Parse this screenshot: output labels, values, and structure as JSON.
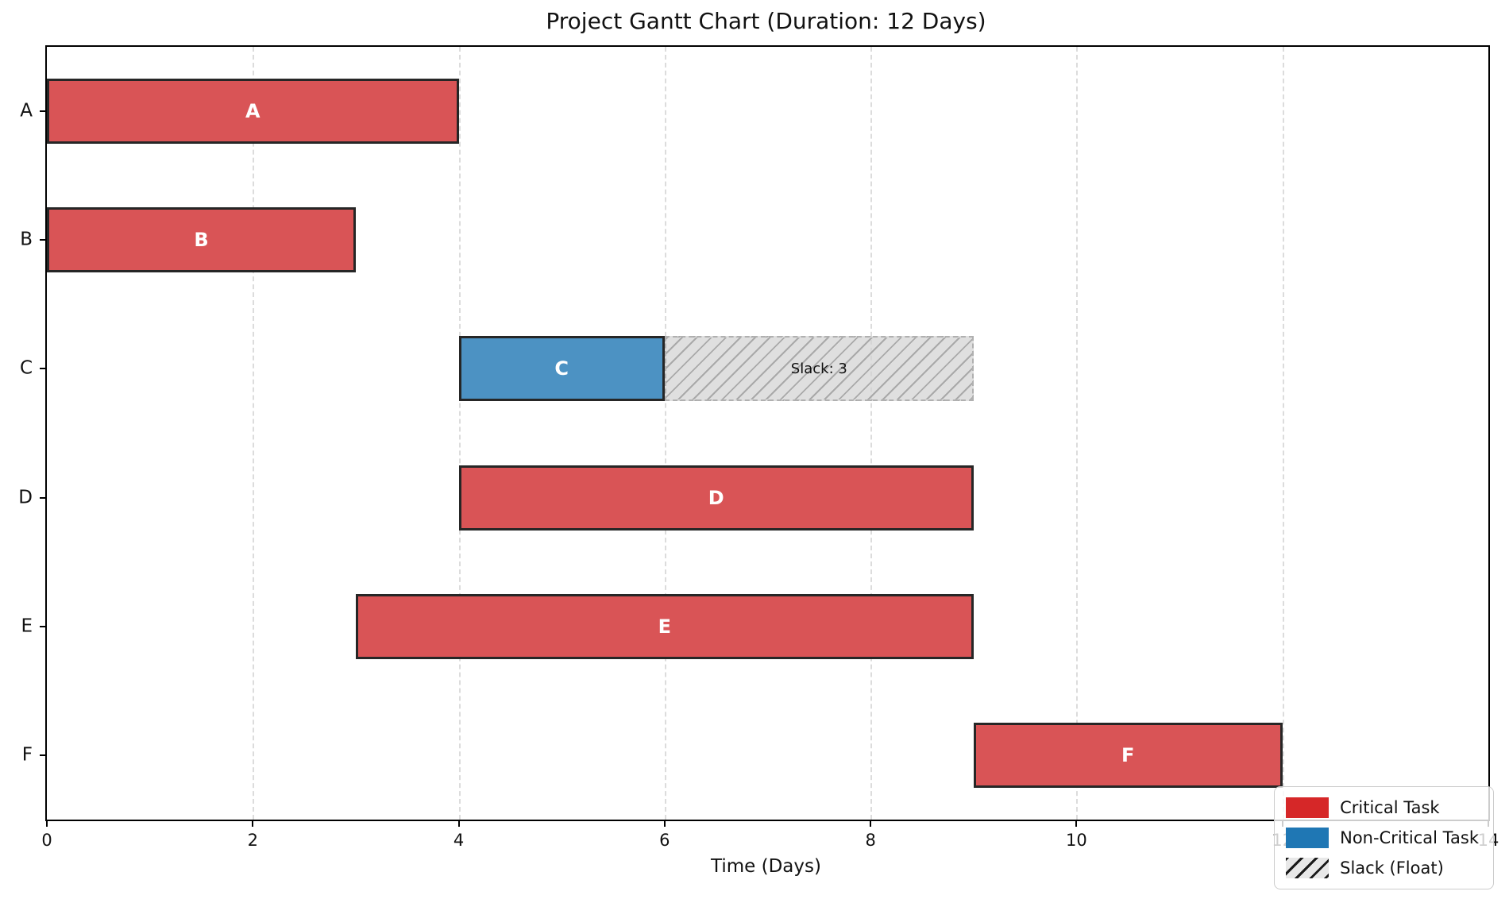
{
  "chart_data": {
    "type": "bar",
    "subtype": "gantt",
    "title": "Project Gantt Chart (Duration: 12 Days)",
    "xlabel": "Time (Days)",
    "project_duration_days": 12,
    "xlim": [
      0,
      14
    ],
    "xticks": [
      0,
      2,
      4,
      6,
      8,
      10,
      12,
      14
    ],
    "grid": {
      "axis": "x",
      "style": "dashed",
      "color": "#dcdcdc"
    },
    "yticklabels": [
      "A",
      "B",
      "C",
      "D",
      "E",
      "F"
    ],
    "tasks": [
      {
        "name": "A",
        "start": 0,
        "duration": 4,
        "end": 4,
        "type": "critical",
        "slack": 0
      },
      {
        "name": "B",
        "start": 0,
        "duration": 3,
        "end": 3,
        "type": "critical",
        "slack": 0
      },
      {
        "name": "C",
        "start": 4,
        "duration": 2,
        "end": 6,
        "type": "non-critical",
        "slack": 3,
        "slack_label": "Slack: 3"
      },
      {
        "name": "D",
        "start": 4,
        "duration": 5,
        "end": 9,
        "type": "critical",
        "slack": 0
      },
      {
        "name": "E",
        "start": 3,
        "duration": 6,
        "end": 9,
        "type": "critical",
        "slack": 0
      },
      {
        "name": "F",
        "start": 9,
        "duration": 3,
        "end": 12,
        "type": "critical",
        "slack": 0
      }
    ],
    "colors": {
      "critical_bar": "#d95456",
      "noncritical_bar": "#4c92c3",
      "bar_edge": "#262626",
      "slack_fill": "#d3d3d3",
      "slack_hatch": "#a0a0a0",
      "legend_critical": "#d62728",
      "legend_noncritical": "#1f77b4",
      "axis": "#000000",
      "grid": "#dcdcdc"
    },
    "legend": {
      "position": "lower right",
      "entries": [
        {
          "label": "Critical Task",
          "swatch": "critical"
        },
        {
          "label": "Non-Critical Task",
          "swatch": "noncritical"
        },
        {
          "label": "Slack (Float)",
          "swatch": "hatch"
        }
      ]
    }
  }
}
